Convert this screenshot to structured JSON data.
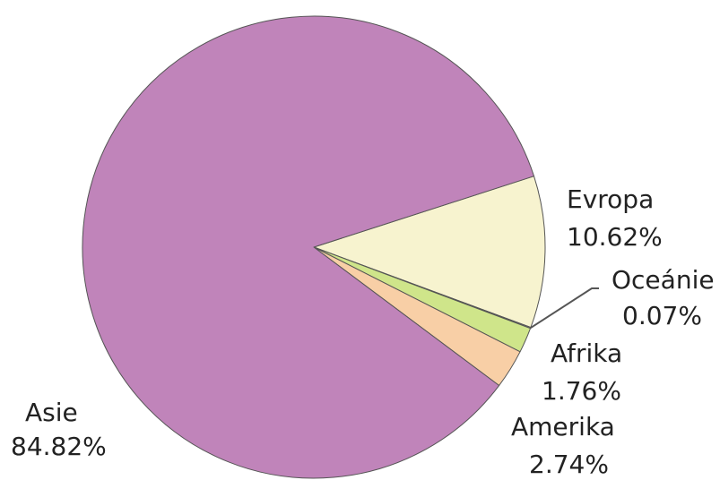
{
  "chart_data": {
    "type": "pie",
    "title": "",
    "slices": [
      {
        "name": "Evropa",
        "percent_label": "10.62%",
        "value": 10.62,
        "color": "#F7F3CF"
      },
      {
        "name": "Oceánie",
        "percent_label": "0.07%",
        "value": 0.07,
        "color": "#C3C3C3"
      },
      {
        "name": "Afrika",
        "percent_label": "1.76%",
        "value": 1.76,
        "color": "#CFE58A"
      },
      {
        "name": "Amerika",
        "percent_label": "2.74%",
        "value": 2.74,
        "color": "#F8CFA6"
      },
      {
        "name": "Asie",
        "percent_label": "84.82%",
        "value": 84.82,
        "color": "#C084BA"
      }
    ],
    "legend": "none"
  }
}
